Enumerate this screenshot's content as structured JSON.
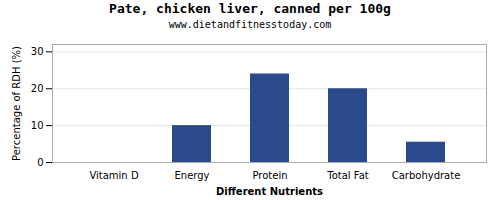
{
  "chart_data": {
    "type": "bar",
    "title": "Pate, chicken liver, canned per 100g",
    "subtitle": "www.dietandfitnesstoday.com",
    "xlabel": "Different Nutrients",
    "ylabel": "Percentage of RDH (%)",
    "categories": [
      "Vitamin D",
      "Energy",
      "Protein",
      "Total Fat",
      "Carbohydrate"
    ],
    "values": [
      0,
      10,
      24,
      20,
      5.5
    ],
    "color": "#2b4a8b",
    "ylim": [
      0,
      32
    ],
    "yticks": [
      0,
      10,
      20,
      30
    ],
    "grid": true
  }
}
